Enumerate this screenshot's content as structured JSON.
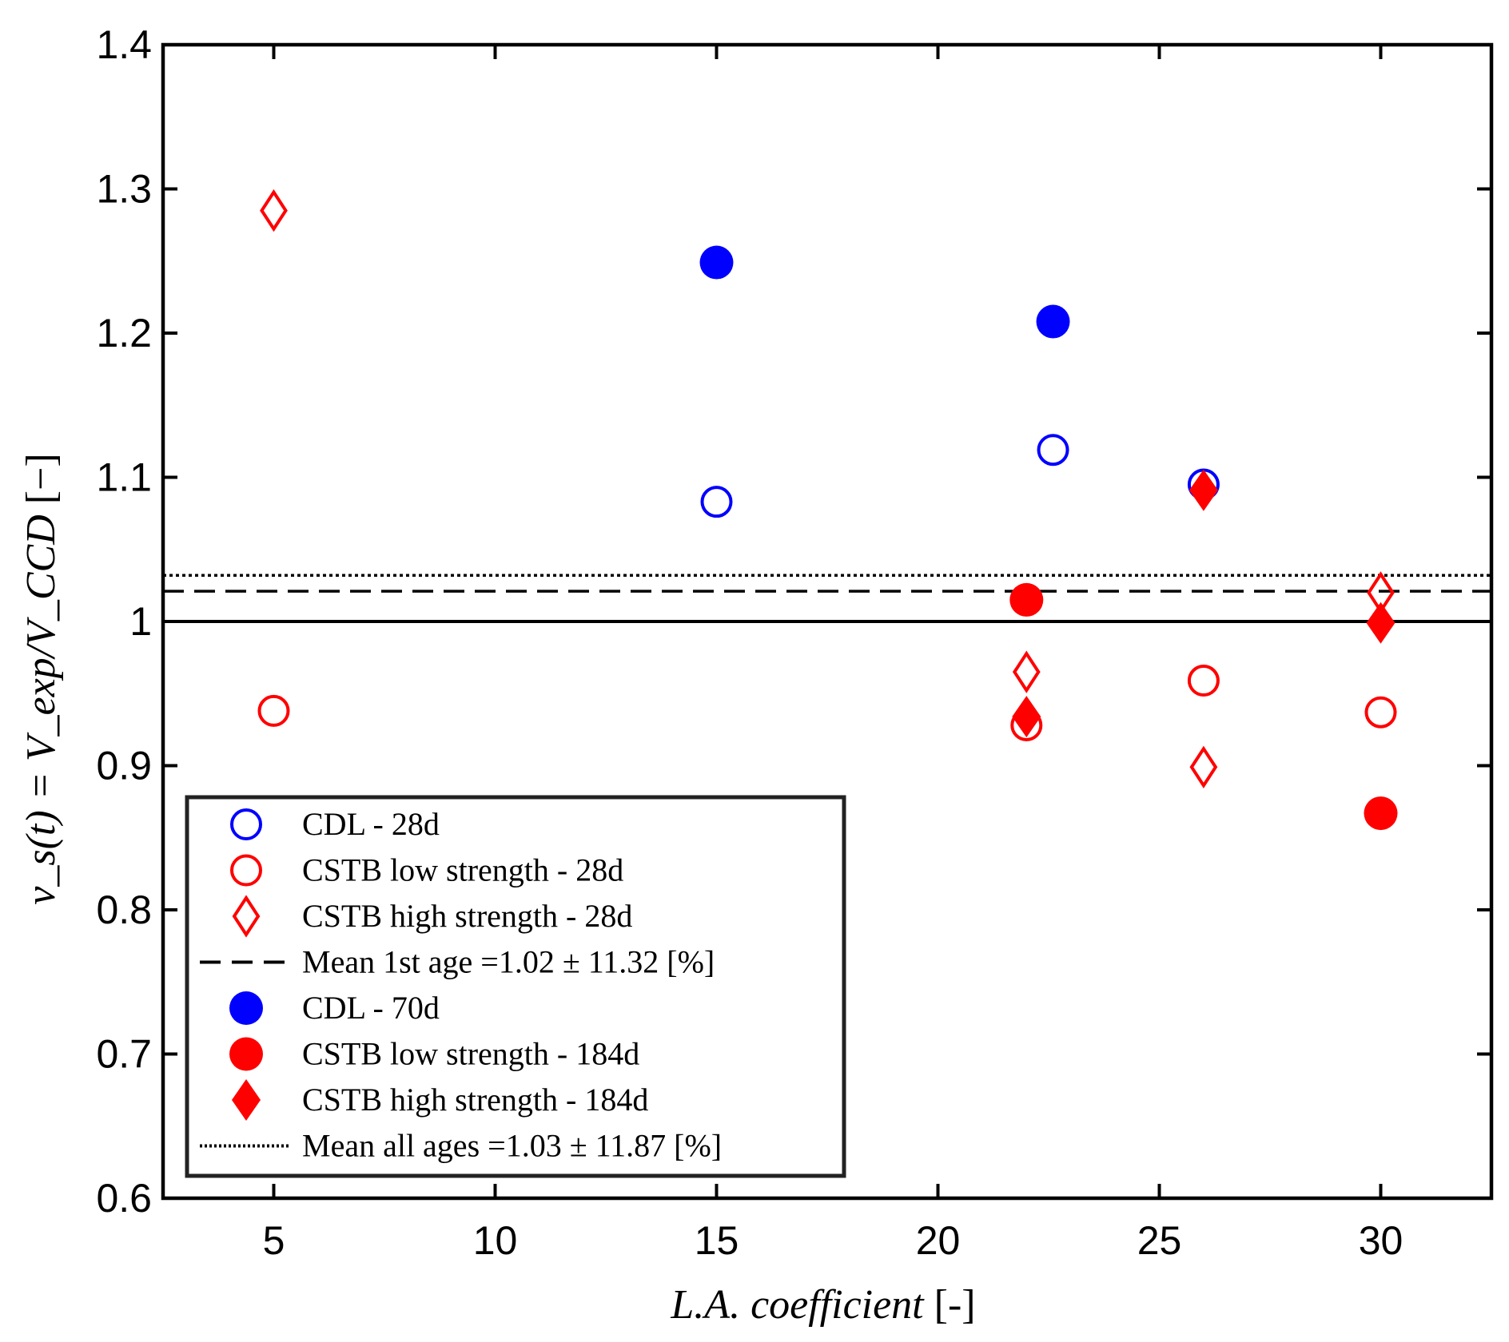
{
  "chart_data": {
    "type": "scatter",
    "title": "",
    "xlabel": {
      "text": "L.A. coefficient",
      "unit": "[-]"
    },
    "ylabel": {
      "text": "ν_s(t) = V_exp/V_CCD",
      "unit": "[−]"
    },
    "xlim": [
      2.5,
      32.5
    ],
    "ylim": [
      0.6,
      1.4
    ],
    "xticks": [
      5,
      10,
      15,
      20,
      25,
      30
    ],
    "yticks": [
      0.6,
      0.7,
      0.8,
      0.9,
      1.0,
      1.1,
      1.2,
      1.3,
      1.4
    ],
    "xtick_labels": [
      "5",
      "10",
      "15",
      "20",
      "25",
      "30"
    ],
    "ytick_labels": [
      "0.6",
      "0.7",
      "0.8",
      "0.9",
      "1",
      "1.1",
      "1.2",
      "1.3",
      "1.4"
    ],
    "grid": false,
    "legend_position": "bottom-left",
    "series": [
      {
        "name": "CDL - 28d",
        "marker": "circle",
        "filled": false,
        "color": "#0000ff",
        "points": [
          [
            15,
            1.083
          ],
          [
            22.6,
            1.119
          ],
          [
            26,
            1.095
          ]
        ]
      },
      {
        "name": "CSTB low strength - 28d",
        "marker": "circle",
        "filled": false,
        "color": "#ff0000",
        "points": [
          [
            5,
            0.938
          ],
          [
            22,
            0.928
          ],
          [
            26,
            0.959
          ],
          [
            30,
            0.937
          ]
        ]
      },
      {
        "name": "CSTB high strength - 28d",
        "marker": "diamond",
        "filled": false,
        "color": "#ff0000",
        "points": [
          [
            5,
            1.285
          ],
          [
            22,
            0.965
          ],
          [
            26,
            0.899
          ],
          [
            30,
            1.02
          ]
        ]
      },
      {
        "name": "Mean 1st age =1.02 ± 11.32 [%]",
        "marker": "dashed-line",
        "color": "#000000",
        "value": 1.021
      },
      {
        "name": "CDL - 70d",
        "marker": "circle",
        "filled": true,
        "color": "#0000ff",
        "points": [
          [
            15,
            1.249
          ],
          [
            22.6,
            1.208
          ]
        ]
      },
      {
        "name": "CSTB low strength - 184d",
        "marker": "circle",
        "filled": true,
        "color": "#ff0000",
        "points": [
          [
            22,
            1.015
          ],
          [
            30,
            0.867
          ]
        ]
      },
      {
        "name": "CSTB high strength - 184d",
        "marker": "diamond",
        "filled": true,
        "color": "#ff0000",
        "points": [
          [
            22,
            0.934
          ],
          [
            26,
            1.091
          ],
          [
            30,
            0.999
          ]
        ]
      },
      {
        "name": "Mean all ages =1.03 ± 11.87 [%]",
        "marker": "dotted-line",
        "color": "#000000",
        "value": 1.032
      }
    ],
    "reference_lines": [
      {
        "name": "unity-line",
        "value": 1.0,
        "style": "solid",
        "color": "#000000"
      }
    ]
  }
}
